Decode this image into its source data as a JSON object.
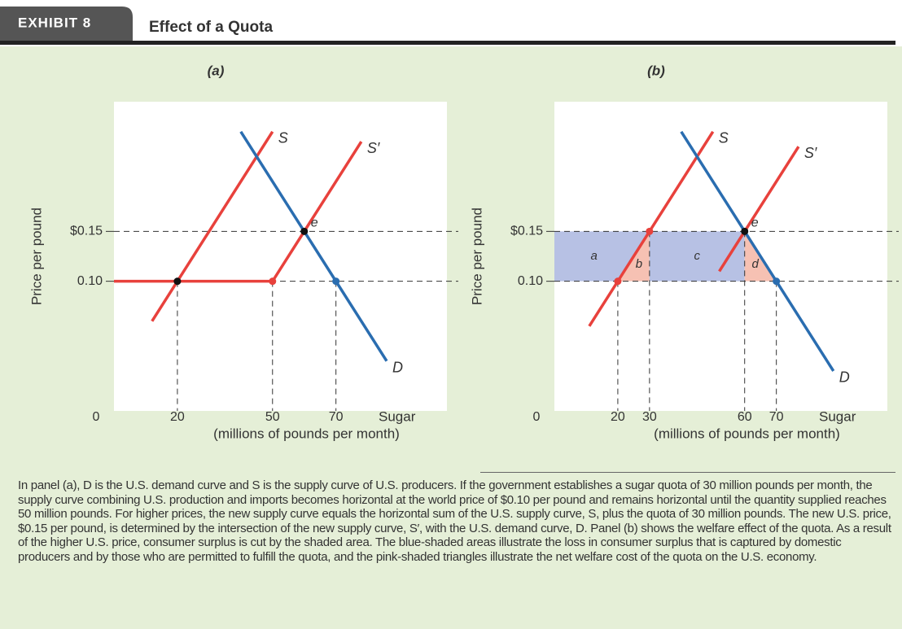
{
  "header": {
    "exhibit": "EXHIBIT 8",
    "title": "Effect of a Quota"
  },
  "chart_data": [
    {
      "type": "line",
      "panel": "(a)",
      "ylabel": "Price per pound",
      "xlabel": "Sugar",
      "xlabel_unit": "(millions of pounds per month)",
      "xlim": [
        0,
        105
      ],
      "ylim": [
        -0.03,
        0.28
      ],
      "xticks": [
        0,
        20,
        50,
        70
      ],
      "yticks": [
        {
          "value": 0.15,
          "label": "$0.15"
        },
        {
          "value": 0.1,
          "label": "0.10"
        }
      ],
      "series": [
        {
          "name": "S",
          "color": "#e8413c",
          "x": [
            12,
            50
          ],
          "values": [
            0.06,
            0.25
          ]
        },
        {
          "name": "S′",
          "color": "#e8413c",
          "x": [
            0,
            50,
            78
          ],
          "values": [
            0.1,
            0.1,
            0.24
          ]
        },
        {
          "name": "D",
          "color": "#2a6db0",
          "x": [
            40,
            86
          ],
          "values": [
            0.25,
            0.02
          ]
        }
      ],
      "points": [
        {
          "x": 20,
          "y": 0.1,
          "color": "#111111"
        },
        {
          "x": 50,
          "y": 0.1,
          "color": "#e8413c"
        },
        {
          "x": 60,
          "y": 0.15,
          "color": "#111111",
          "label": "e"
        },
        {
          "x": 70,
          "y": 0.1,
          "color": "#2a6db0"
        }
      ]
    },
    {
      "type": "line",
      "panel": "(b)",
      "ylabel": "Price per pound",
      "xlabel": "Sugar",
      "xlabel_unit": "(millions of pounds per month)",
      "xlim": [
        0,
        105
      ],
      "ylim": [
        -0.03,
        0.28
      ],
      "xticks": [
        0,
        20,
        30,
        60,
        70
      ],
      "yticks": [
        {
          "value": 0.15,
          "label": "$0.15"
        },
        {
          "value": 0.1,
          "label": "0.10"
        }
      ],
      "areas": [
        {
          "label": "a",
          "color": "#b7c1e4",
          "x": [
            0,
            20,
            30,
            0
          ],
          "values": [
            0.1,
            0.1,
            0.15,
            0.15
          ]
        },
        {
          "label": "b",
          "color": "#f6c1b3",
          "x": [
            20,
            30,
            30
          ],
          "values": [
            0.1,
            0.1,
            0.15
          ]
        },
        {
          "label": "c",
          "color": "#b7c1e4",
          "x": [
            30,
            60,
            60,
            30
          ],
          "values": [
            0.1,
            0.1,
            0.15,
            0.15
          ]
        },
        {
          "label": "d",
          "color": "#f6c1b3",
          "x": [
            60,
            70,
            60
          ],
          "values": [
            0.1,
            0.1,
            0.15
          ]
        }
      ],
      "series": [
        {
          "name": "S",
          "color": "#e8413c",
          "x": [
            11,
            50
          ],
          "values": [
            0.055,
            0.25
          ]
        },
        {
          "name": "S′",
          "color": "#e8413c",
          "x": [
            52,
            77
          ],
          "values": [
            0.11,
            0.235
          ]
        },
        {
          "name": "D",
          "color": "#2a6db0",
          "x": [
            40,
            88
          ],
          "values": [
            0.25,
            0.01
          ]
        }
      ],
      "points": [
        {
          "x": 20,
          "y": 0.1,
          "color": "#e8413c"
        },
        {
          "x": 30,
          "y": 0.15,
          "color": "#e8413c"
        },
        {
          "x": 60,
          "y": 0.15,
          "color": "#111111",
          "label": "e"
        },
        {
          "x": 70,
          "y": 0.1,
          "color": "#2a6db0"
        }
      ]
    }
  ],
  "caption": "In panel (a), D is the U.S. demand curve and S is the supply curve of U.S. producers. If the government establishes a sugar quota of 30 million pounds per month, the supply curve combining U.S. production and imports becomes horizontal at the world price of $0.10 per pound and remains horizontal until the quantity supplied reaches 50 million pounds. For higher prices, the new supply curve equals the horizontal sum of the U.S. supply curve, S, plus the quota of 30 million pounds. The new U.S. price, $0.15 per pound, is determined by the intersection of the new supply curve, S′, with the U.S. demand curve, D. Panel (b) shows the welfare effect of the quota. As a result of the higher U.S. price, consumer surplus is cut by the shaded area. The blue-shaded areas illustrate the loss in consumer surplus that is captured by domestic producers and by those who are permitted to fulfill the quota, and the pink-shaded triangles illustrate the net welfare cost of the quota on the U.S. economy."
}
